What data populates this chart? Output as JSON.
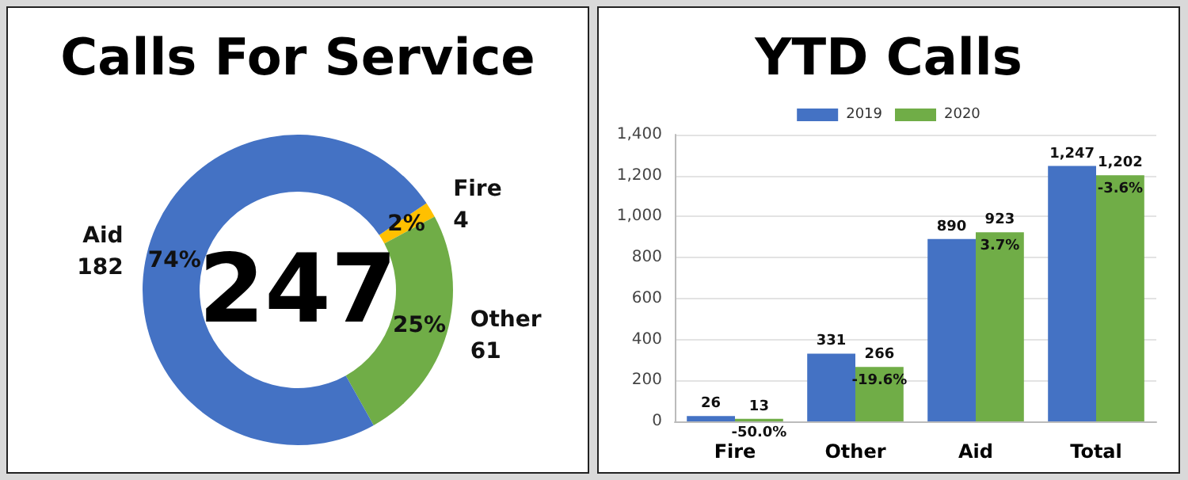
{
  "chart_data": [
    {
      "type": "donut",
      "title": "Calls For Service",
      "categories": [
        "Fire",
        "Other",
        "Aid"
      ],
      "values": [
        4,
        61,
        182
      ],
      "colors": [
        "#ffc000",
        "#70ad47",
        "#4472c4"
      ],
      "value_labels": [
        "4",
        "61",
        "182"
      ],
      "annotations": [
        "247",
        {
          "text": "2%",
          "x": "Fire"
        },
        {
          "text": "25%",
          "x": "Other"
        },
        {
          "text": "74%",
          "x": "Aid"
        }
      ]
    },
    {
      "type": "bar",
      "title": "YTD Calls",
      "categories": [
        "Fire",
        "Other",
        "Aid",
        "Total"
      ],
      "series": [
        {
          "name": "2019",
          "color": "#4472c4",
          "values": [
            26,
            331,
            890,
            1247
          ],
          "value_labels": [
            "26",
            "331",
            "890",
            "1,247"
          ]
        },
        {
          "name": "2020",
          "color": "#70ad47",
          "values": [
            13,
            266,
            923,
            1202
          ],
          "value_labels": [
            "13",
            "266",
            "923",
            "1,202"
          ]
        }
      ],
      "ylim": [
        0,
        1400
      ],
      "yticks": [
        0,
        200,
        400,
        600,
        800,
        {
          "value": 1000,
          "label": "1,000"
        },
        {
          "value": 1200,
          "label": "1,200"
        },
        {
          "value": 1400,
          "label": "1,400"
        }
      ],
      "grid": "y",
      "legend": "top",
      "annotations": [
        {
          "text": "-50.0%",
          "x": "Fire",
          "y": 13
        },
        {
          "text": "-19.6%",
          "x": "Other",
          "y": 266
        },
        {
          "text": "3.7%",
          "x": "Aid",
          "y": 923
        },
        {
          "text": "-3.6%",
          "x": "Total",
          "y": 1202
        }
      ]
    }
  ]
}
